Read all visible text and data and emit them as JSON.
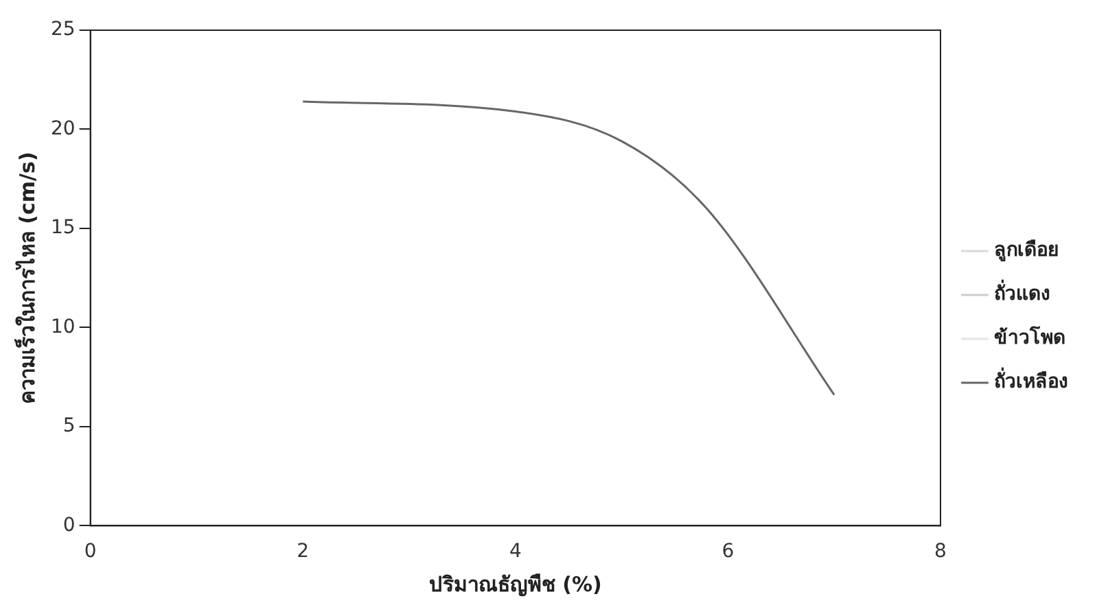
{
  "chart_data": {
    "type": "line",
    "xlabel": "ปริมาณธัญพืช (%)",
    "ylabel": "ความเร็วในการไหล (cm/s)",
    "xlim": [
      0,
      8
    ],
    "xticks": [
      0,
      2,
      4,
      6,
      8
    ],
    "ylim": [
      0,
      25
    ],
    "yticks": [
      0,
      5,
      10,
      15,
      20,
      25
    ],
    "grid": false,
    "legend": "right",
    "marker": "none",
    "line_style": "solid",
    "series": [
      {
        "name": "ลูกเดือย",
        "color": "#d8d8d8"
      },
      {
        "name": "ถั่วแดง",
        "color": "#cccccc"
      },
      {
        "name": "ข้าวโพด",
        "color": "#e4e4e4"
      },
      {
        "name": "ถั่วเหลือง",
        "color": "#666666",
        "x": [
          2,
          4,
          5,
          5.8,
          7
        ],
        "values": [
          21.4,
          20.9,
          19.4,
          16.0,
          6.6
        ]
      }
    ]
  }
}
